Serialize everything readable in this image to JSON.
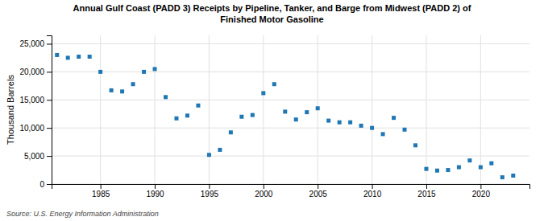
{
  "chart_data": {
    "type": "scatter",
    "title": [
      "Annual Gulf Coast (PADD 3) Receipts by Pipeline, Tanker, and Barge from Midwest (PADD 2) of",
      "Finished Motor Gasoline"
    ],
    "ylabel": "Thousand Barrels",
    "annotations": [
      "Source: U.S. Energy Information Administration"
    ],
    "x": [
      1981,
      1982,
      1983,
      1984,
      1985,
      1986,
      1987,
      1988,
      1989,
      1990,
      1991,
      1992,
      1993,
      1994,
      1995,
      1996,
      1997,
      1998,
      1999,
      2000,
      2001,
      2002,
      2003,
      2004,
      2005,
      2006,
      2007,
      2008,
      2009,
      2010,
      2011,
      2012,
      2013,
      2014,
      2015,
      2016,
      2017,
      2018,
      2019,
      2020,
      2021,
      2022,
      2023
    ],
    "values": [
      23000,
      22500,
      22700,
      22700,
      20000,
      16700,
      16500,
      17800,
      20000,
      20500,
      15500,
      11700,
      12200,
      14000,
      5200,
      6100,
      9200,
      12000,
      12300,
      16200,
      17800,
      12900,
      11500,
      12800,
      13500,
      11300,
      11000,
      11000,
      10400,
      10000,
      8900,
      11800,
      9700,
      6900,
      2700,
      2400,
      2500,
      3000,
      4200,
      3000,
      3700,
      1200,
      1500
    ],
    "xlim": [
      1980.5,
      2024.5
    ],
    "xticks": [
      1985,
      1990,
      1995,
      2000,
      2005,
      2010,
      2015,
      2020
    ],
    "ylim": [
      0,
      26500
    ],
    "yticks": [
      0,
      {
        "value": 5000,
        "label": "5,000"
      },
      {
        "value": 10000,
        "label": "10,000"
      },
      {
        "value": 15000,
        "label": "15,000"
      },
      {
        "value": 20000,
        "label": "20,000"
      },
      {
        "value": 25000,
        "label": "25,000"
      }
    ],
    "grid": true,
    "marker": "square"
  }
}
